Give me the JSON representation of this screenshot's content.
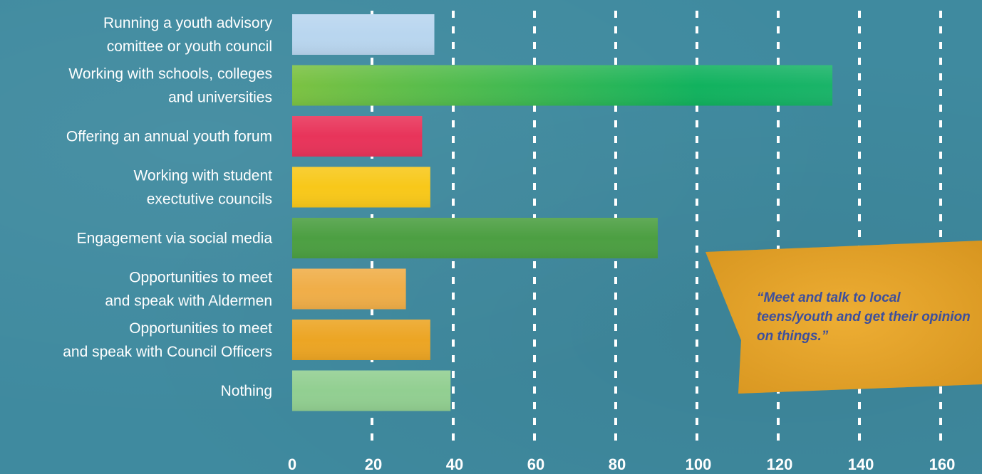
{
  "chart_data": {
    "type": "bar",
    "orientation": "horizontal",
    "categories": [
      [
        "Running a youth advisory",
        "comittee or youth council"
      ],
      [
        "Working with schools, colleges",
        "and universities"
      ],
      [
        "Offering an annual youth forum"
      ],
      [
        "Working with student",
        "exectutive councils"
      ],
      [
        "Engagement via social media"
      ],
      [
        "Opportunities to meet",
        "and speak with Aldermen"
      ],
      [
        "Opportunities to meet",
        "and speak with Council Officers"
      ],
      [
        "Nothing"
      ]
    ],
    "values": [
      35,
      133,
      32,
      34,
      90,
      28,
      34,
      39
    ],
    "colors": [
      "#b9d6ef",
      "#62b845",
      "#e8345a",
      "#f8c81a",
      "#4c9f42",
      "#f0ae48",
      "#eca524",
      "#92cf91"
    ],
    "xlim": [
      0,
      160
    ],
    "xticks": [
      "0",
      "20",
      "40",
      "60",
      "80",
      "100",
      "120",
      "140",
      "160"
    ],
    "grid": true,
    "grid_style": "dashed-white-vertical"
  },
  "callout": {
    "text": "“Meet and talk to local teens/youth and get their opinion on things.”",
    "color": "#e8a428"
  }
}
